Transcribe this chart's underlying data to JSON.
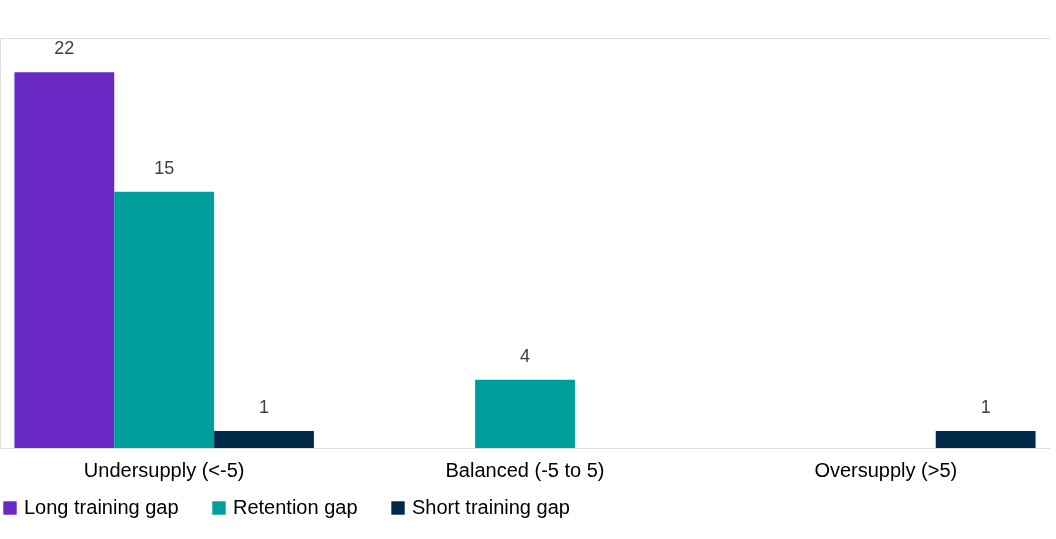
{
  "chart_data": {
    "type": "bar",
    "categories": [
      "Undersupply (<-5)",
      "Balanced (-5 to 5)",
      "Oversupply  (>5)"
    ],
    "series": [
      {
        "name": "Long training gap",
        "color": "#6a28c4",
        "values": [
          22,
          null,
          null
        ]
      },
      {
        "name": "Retention gap",
        "color": "#009e9a",
        "values": [
          15,
          4,
          null
        ]
      },
      {
        "name": "Short training gap",
        "color": "#002a4a",
        "values": [
          1,
          null,
          1
        ]
      }
    ],
    "ylim": [
      0,
      24
    ],
    "data_labels": true,
    "legend": "bottom",
    "grid": false
  }
}
